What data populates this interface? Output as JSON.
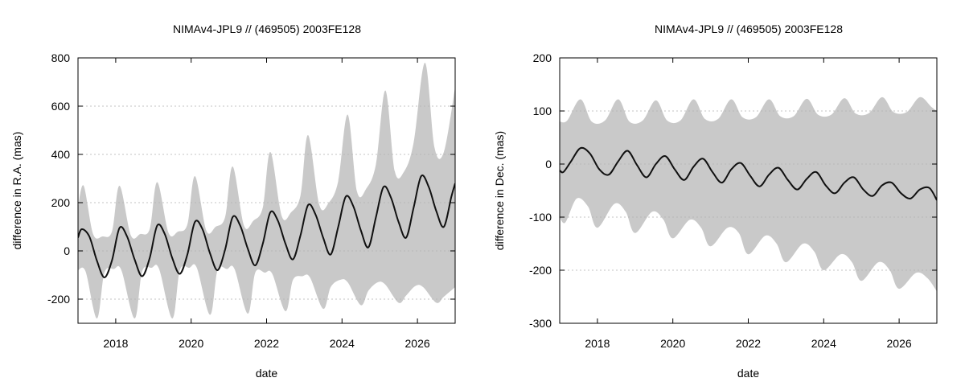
{
  "chart_data": [
    {
      "type": "area",
      "title": "NIMAv4-JPL9 // (469505) 2003FE128",
      "xlabel": "date",
      "ylabel": "difference in R.A. (mas)",
      "xlim": [
        2017.0,
        2027.0
      ],
      "ylim": [
        -300,
        800
      ],
      "xticks": [
        2018,
        2020,
        2022,
        2024,
        2026
      ],
      "yticks": [
        -200,
        0,
        200,
        400,
        600,
        800
      ],
      "grid": "horizontal dotted",
      "band_color": "#c9c9c9",
      "line_color": "#111111",
      "series": [
        {
          "role": "difference curve",
          "x": [
            2017.0,
            2017.1,
            2017.3,
            2017.5,
            2017.7,
            2017.9,
            2018.1,
            2018.3,
            2018.5,
            2018.7,
            2018.9,
            2019.1,
            2019.3,
            2019.5,
            2019.7,
            2019.9,
            2020.1,
            2020.3,
            2020.5,
            2020.7,
            2020.9,
            2021.1,
            2021.3,
            2021.5,
            2021.7,
            2021.9,
            2022.1,
            2022.3,
            2022.5,
            2022.7,
            2022.9,
            2023.1,
            2023.3,
            2023.5,
            2023.7,
            2023.9,
            2024.1,
            2024.3,
            2024.5,
            2024.7,
            2024.9,
            2025.1,
            2025.3,
            2025.5,
            2025.7,
            2025.9,
            2026.1,
            2026.3,
            2026.5,
            2026.7,
            2026.9,
            2027.0
          ],
          "y": [
            55,
            90,
            60,
            -40,
            -110,
            -40,
            95,
            60,
            -35,
            -105,
            -30,
            105,
            70,
            -30,
            -95,
            -15,
            120,
            90,
            -10,
            -80,
            5,
            140,
            105,
            10,
            -60,
            30,
            160,
            125,
            30,
            -35,
            65,
            190,
            150,
            55,
            -15,
            100,
            225,
            185,
            85,
            15,
            140,
            265,
            220,
            120,
            55,
            180,
            310,
            265,
            165,
            100,
            225,
            280
          ]
        },
        {
          "role": "band upper",
          "x": [
            2017.0,
            2017.15,
            2017.4,
            2017.65,
            2017.9,
            2018.1,
            2018.4,
            2018.65,
            2018.9,
            2019.1,
            2019.4,
            2019.65,
            2019.9,
            2020.1,
            2020.4,
            2020.65,
            2020.9,
            2021.1,
            2021.4,
            2021.65,
            2021.9,
            2022.1,
            2022.4,
            2022.65,
            2022.9,
            2023.1,
            2023.4,
            2023.65,
            2023.9,
            2024.15,
            2024.4,
            2024.65,
            2024.9,
            2025.15,
            2025.4,
            2025.65,
            2025.9,
            2026.2,
            2026.45,
            2026.7,
            2027.0
          ],
          "y": [
            180,
            270,
            70,
            60,
            80,
            270,
            65,
            70,
            90,
            285,
            75,
            80,
            110,
            310,
            85,
            100,
            140,
            350,
            105,
            125,
            180,
            410,
            145,
            160,
            230,
            480,
            190,
            200,
            290,
            565,
            245,
            260,
            360,
            665,
            330,
            330,
            450,
            780,
            430,
            410,
            680
          ]
        },
        {
          "role": "band lower",
          "x": [
            2017.0,
            2017.2,
            2017.5,
            2017.7,
            2017.95,
            2018.15,
            2018.5,
            2018.7,
            2018.95,
            2019.15,
            2019.5,
            2019.7,
            2019.95,
            2020.15,
            2020.5,
            2020.7,
            2020.95,
            2021.15,
            2021.5,
            2021.7,
            2021.95,
            2022.15,
            2022.5,
            2022.7,
            2022.95,
            2023.15,
            2023.5,
            2023.7,
            2023.95,
            2024.15,
            2024.5,
            2024.7,
            2024.95,
            2025.15,
            2025.5,
            2025.7,
            2025.95,
            2026.15,
            2026.5,
            2026.7,
            2027.0
          ],
          "y": [
            -80,
            -85,
            -280,
            -90,
            -75,
            -80,
            -280,
            -85,
            -70,
            -75,
            -280,
            -80,
            -70,
            -70,
            -265,
            -80,
            -75,
            -75,
            -260,
            -90,
            -90,
            -95,
            -250,
            -120,
            -105,
            -110,
            -240,
            -150,
            -120,
            -130,
            -225,
            -165,
            -130,
            -140,
            -215,
            -185,
            -145,
            -150,
            -215,
            -190,
            -150
          ]
        }
      ]
    },
    {
      "type": "area",
      "title": "NIMAv4-JPL9 // (469505) 2003FE128",
      "xlabel": "date",
      "ylabel": "difference in Dec. (mas)",
      "xlim": [
        2017.0,
        2027.0
      ],
      "ylim": [
        -300,
        200
      ],
      "xticks": [
        2018,
        2020,
        2022,
        2024,
        2026
      ],
      "yticks": [
        -300,
        -200,
        -100,
        0,
        100,
        200
      ],
      "grid": "horizontal dotted",
      "band_color": "#c9c9c9",
      "line_color": "#111111",
      "series": [
        {
          "role": "difference curve",
          "x": [
            2017.0,
            2017.1,
            2017.3,
            2017.55,
            2017.8,
            2018.05,
            2018.3,
            2018.55,
            2018.8,
            2019.05,
            2019.3,
            2019.55,
            2019.8,
            2020.05,
            2020.3,
            2020.55,
            2020.8,
            2021.05,
            2021.3,
            2021.55,
            2021.8,
            2022.05,
            2022.3,
            2022.55,
            2022.8,
            2023.05,
            2023.3,
            2023.55,
            2023.8,
            2024.05,
            2024.3,
            2024.55,
            2024.8,
            2025.05,
            2025.3,
            2025.55,
            2025.8,
            2026.05,
            2026.3,
            2026.55,
            2026.8,
            2027.0
          ],
          "y": [
            -12,
            -15,
            5,
            30,
            20,
            -10,
            -20,
            5,
            25,
            -2,
            -25,
            0,
            15,
            -10,
            -30,
            -5,
            10,
            -15,
            -35,
            -10,
            2,
            -22,
            -42,
            -20,
            -7,
            -30,
            -48,
            -28,
            -15,
            -40,
            -55,
            -35,
            -25,
            -48,
            -60,
            -40,
            -35,
            -55,
            -65,
            -48,
            -45,
            -68
          ]
        },
        {
          "role": "band upper",
          "x": [
            2017.0,
            2017.2,
            2017.55,
            2017.85,
            2018.2,
            2018.55,
            2018.85,
            2019.2,
            2019.55,
            2019.85,
            2020.2,
            2020.55,
            2020.85,
            2021.2,
            2021.55,
            2021.85,
            2022.2,
            2022.55,
            2022.85,
            2023.2,
            2023.55,
            2023.85,
            2024.2,
            2024.55,
            2024.85,
            2025.2,
            2025.55,
            2025.85,
            2026.2,
            2026.55,
            2026.85,
            2027.0
          ],
          "y": [
            80,
            82,
            122,
            80,
            82,
            122,
            80,
            82,
            120,
            82,
            82,
            122,
            85,
            85,
            122,
            88,
            88,
            122,
            90,
            90,
            123,
            93,
            93,
            124,
            95,
            96,
            126,
            98,
            98,
            126,
            108,
            100
          ]
        },
        {
          "role": "band lower",
          "x": [
            2017.0,
            2017.15,
            2017.45,
            2017.75,
            2018.0,
            2018.45,
            2018.75,
            2019.0,
            2019.45,
            2019.75,
            2020.0,
            2020.45,
            2020.75,
            2021.0,
            2021.45,
            2021.75,
            2022.0,
            2022.45,
            2022.75,
            2023.0,
            2023.45,
            2023.75,
            2024.0,
            2024.45,
            2024.75,
            2025.0,
            2025.45,
            2025.75,
            2026.0,
            2026.45,
            2026.75,
            2027.0
          ],
          "y": [
            -100,
            -110,
            -65,
            -80,
            -120,
            -75,
            -90,
            -130,
            -90,
            -105,
            -140,
            -105,
            -120,
            -155,
            -120,
            -130,
            -170,
            -135,
            -150,
            -185,
            -150,
            -165,
            -200,
            -170,
            -185,
            -220,
            -185,
            -200,
            -235,
            -205,
            -215,
            -240
          ]
        }
      ]
    }
  ]
}
